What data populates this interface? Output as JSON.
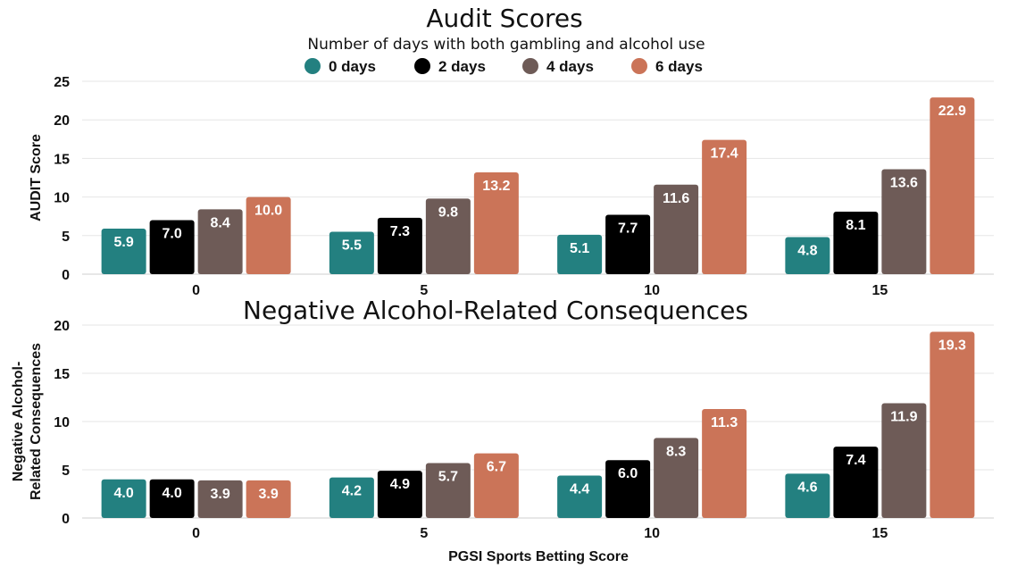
{
  "legend": {
    "title": "Number of days with both gambling and alcohol use",
    "entries": [
      {
        "name": "0 days",
        "color": "#238080"
      },
      {
        "name": "2 days",
        "color": "#000000"
      },
      {
        "name": "4 days",
        "color": "#6e5b57"
      },
      {
        "name": "6 days",
        "color": "#cb7458"
      }
    ]
  },
  "chart_data": [
    {
      "type": "bar",
      "title": "Audit Scores",
      "xlabel": "",
      "ylabel": "AUDIT Score",
      "ylim": [
        0,
        25
      ],
      "yticks": [
        0,
        5,
        10,
        15,
        20,
        25
      ],
      "categories": [
        "0",
        "5",
        "10",
        "15"
      ],
      "grid": true,
      "legend_position": "top",
      "series": [
        {
          "name": "0 days",
          "values": [
            5.9,
            5.5,
            5.1,
            4.8
          ],
          "labels": [
            "5.9",
            "5.5",
            "5.1",
            "4.8"
          ]
        },
        {
          "name": "2 days",
          "values": [
            7.0,
            7.3,
            7.7,
            8.1
          ],
          "labels": [
            "7.0",
            "7.3",
            "7.7",
            "8.1"
          ]
        },
        {
          "name": "4 days",
          "values": [
            8.4,
            9.8,
            11.6,
            13.6
          ],
          "labels": [
            "8.4",
            "9.8",
            "11.6",
            "13.6"
          ]
        },
        {
          "name": "6 days",
          "values": [
            10.0,
            13.2,
            17.4,
            22.9
          ],
          "labels": [
            "10.0",
            "13.2",
            "17.4",
            "22.9"
          ]
        }
      ]
    },
    {
      "type": "bar",
      "title": "Negative Alcohol-Related Consequences",
      "xlabel": "PGSI Sports Betting Score",
      "ylabel": [
        "Negative Alcohol-",
        "Related Consequences"
      ],
      "ylim": [
        0,
        20
      ],
      "yticks": [
        0,
        5,
        10,
        15,
        20
      ],
      "categories": [
        "0",
        "5",
        "10",
        "15"
      ],
      "grid": true,
      "series": [
        {
          "name": "0 days",
          "values": [
            4.0,
            4.2,
            4.4,
            4.6
          ],
          "labels": [
            "4.0",
            "4.2",
            "4.4",
            "4.6"
          ]
        },
        {
          "name": "2 days",
          "values": [
            4.0,
            4.9,
            6.0,
            7.4
          ],
          "labels": [
            "4.0",
            "4.9",
            "6.0",
            "7.4"
          ]
        },
        {
          "name": "4 days",
          "values": [
            3.9,
            5.7,
            8.3,
            11.9
          ],
          "labels": [
            "3.9",
            "5.7",
            "8.3",
            "11.9"
          ]
        },
        {
          "name": "6 days",
          "values": [
            3.9,
            6.7,
            11.3,
            19.3
          ],
          "labels": [
            "3.9",
            "6.7",
            "11.3",
            "19.3"
          ]
        }
      ]
    }
  ]
}
